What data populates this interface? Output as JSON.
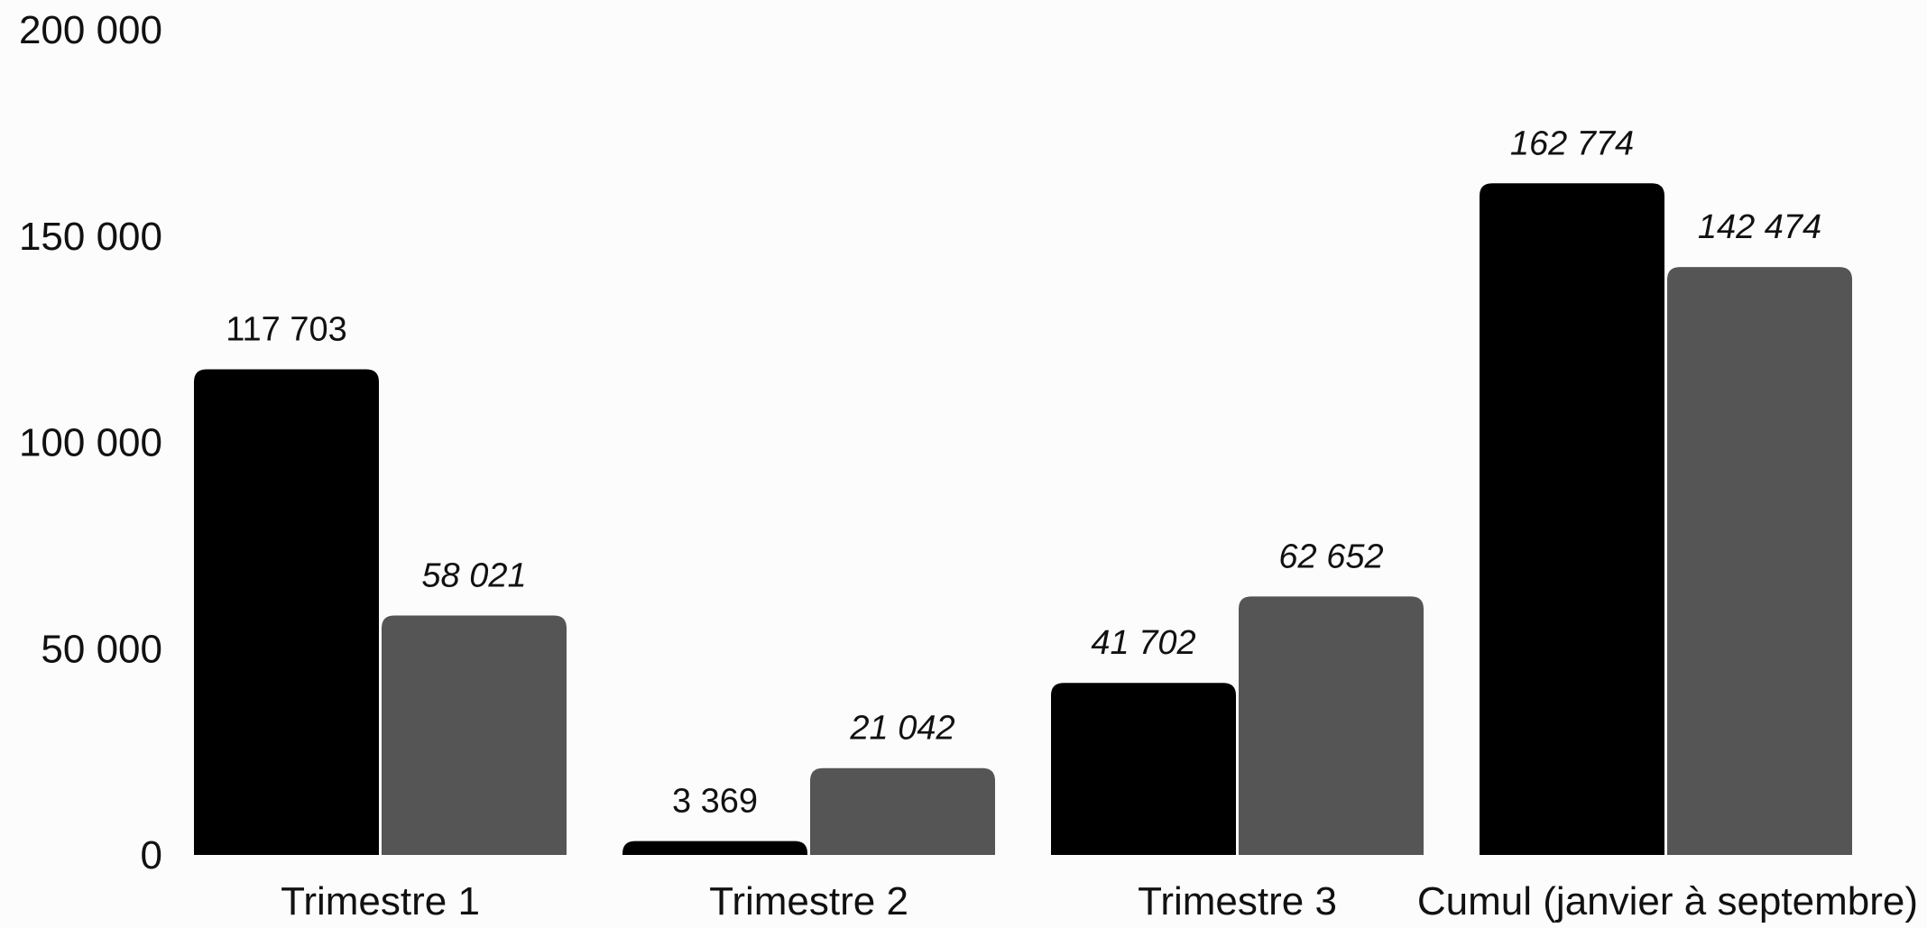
{
  "chart_data": {
    "type": "bar",
    "title": "",
    "xlabel": "",
    "ylabel": "",
    "categories": [
      "Trimestre 1",
      "Trimestre 2",
      "Trimestre 3",
      "Cumul (janvier à septembre)"
    ],
    "series": [
      {
        "color": "#000000",
        "values": [
          117703,
          3369,
          41702,
          162774
        ],
        "labels": [
          "117 703",
          "3 369",
          "41 702",
          "162 774"
        ],
        "label_italic": [
          false,
          false,
          true,
          true
        ]
      },
      {
        "color": "#555555",
        "values": [
          58021,
          21042,
          62652,
          142474
        ],
        "labels": [
          "58 021",
          "21 042",
          "62 652",
          "142 474"
        ],
        "label_italic": [
          true,
          true,
          true,
          true
        ]
      }
    ],
    "ylim": [
      0,
      200000
    ],
    "y_ticks": [
      0,
      50000,
      100000,
      150000,
      200000
    ],
    "y_tick_labels": [
      "0",
      "50 000",
      "100 000",
      "150 000",
      "200 000"
    ],
    "grid": false,
    "legend": "none"
  }
}
